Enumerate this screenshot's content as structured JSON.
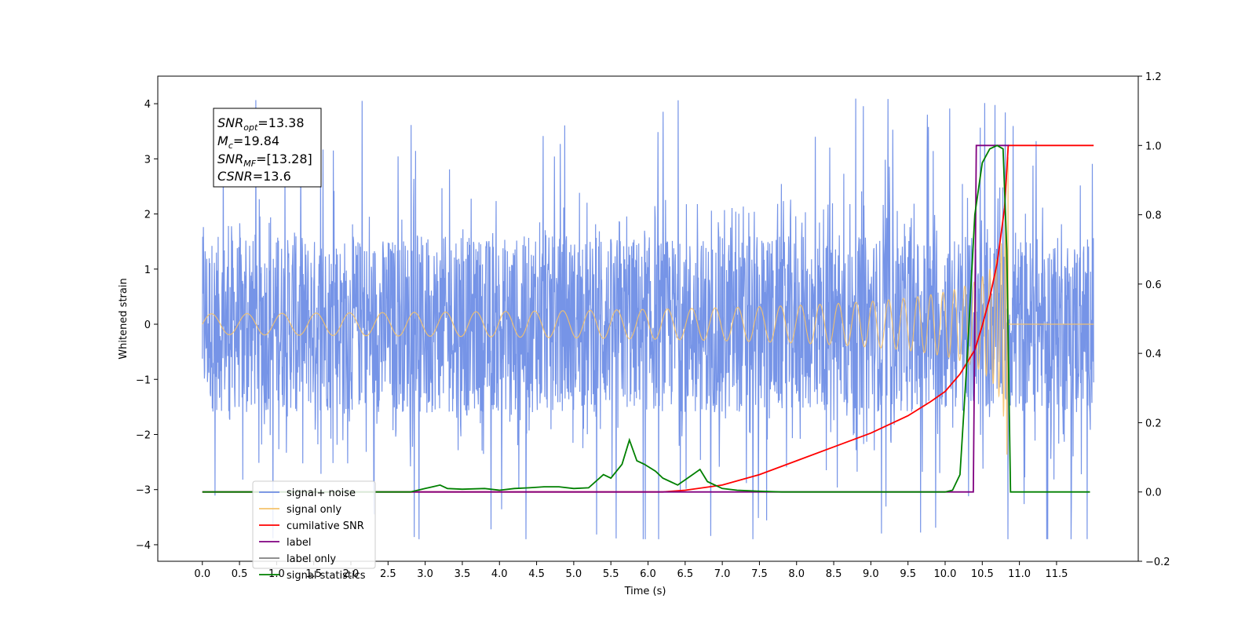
{
  "chart_data": {
    "type": "line",
    "xlabel": "Time (s)",
    "ylabel": "Whitened strain",
    "xlim": [
      -0.6,
      12.6
    ],
    "ylim": [
      -4.3,
      4.5
    ],
    "y2lim": [
      -0.2,
      1.2
    ],
    "x_ticks": [
      0.0,
      0.5,
      1.0,
      1.5,
      2.0,
      2.5,
      3.0,
      3.5,
      4.0,
      4.5,
      5.0,
      5.5,
      6.0,
      6.5,
      7.0,
      7.5,
      8.0,
      8.5,
      9.0,
      9.5,
      10.0,
      10.5,
      11.0,
      11.5
    ],
    "x_tick_labels": [
      "0.0",
      "0.5",
      "1.0",
      "1.5",
      "2.0",
      "2.5",
      "3.0",
      "3.5",
      "4.0",
      "4.5",
      "5.0",
      "5.5",
      "6.0",
      "6.5",
      "7.0",
      "7.5",
      "8.0",
      "8.5",
      "9.0",
      "9.5",
      "10.0",
      "10.5",
      "11.0",
      "11.5"
    ],
    "y_ticks": [
      4,
      3,
      2,
      1,
      0,
      -1,
      -2,
      -3,
      -4
    ],
    "y_tick_labels": [
      "4",
      "3",
      "2",
      "1",
      "0",
      "−1",
      "−2",
      "−3",
      "−4"
    ],
    "y2_ticks": [
      1.2,
      1.0,
      0.8,
      0.6,
      0.4,
      0.2,
      0.0,
      -0.2
    ],
    "y2_tick_labels": [
      "1.2",
      "1.0",
      "0.8",
      "0.6",
      "0.4",
      "0.2",
      "0.0",
      "−0.2"
    ],
    "info_box": {
      "snr_opt": {
        "base": "SNR",
        "sub": "opt",
        "value": "=13.38"
      },
      "mc": {
        "base": "M",
        "sub": "c",
        "value": "=19.84"
      },
      "snr_mf": {
        "base": "SNR",
        "sub": "MF",
        "value": "=[13.28]"
      },
      "csnr": {
        "base": "CSNR",
        "sub": "",
        "value": "=13.6"
      }
    },
    "legend_position": "lower-left",
    "series": [
      {
        "name": "signal+ noise",
        "axis": "left",
        "color": "#6f8ee6",
        "kind": "noise",
        "x_range": [
          0.0,
          12.0
        ],
        "envelope": {
          "min": -3.9,
          "max": 4.1,
          "typical_low": -2.3,
          "typical_high": 2.3,
          "core": 1.6
        }
      },
      {
        "name": "signal only",
        "axis": "left",
        "color": "#f5c26b",
        "kind": "chirp",
        "x_range": [
          0.0,
          12.0
        ],
        "peak_amplitude": 3.2,
        "merger_time": 10.85
      },
      {
        "name": "cumilative SNR",
        "axis": "right",
        "color": "#ff0000",
        "x": [
          0.0,
          6.2,
          6.5,
          7.0,
          7.5,
          8.0,
          8.5,
          9.0,
          9.5,
          9.8,
          10.0,
          10.2,
          10.4,
          10.5,
          10.6,
          10.7,
          10.75,
          10.8,
          10.85,
          12.0
        ],
        "y": [
          0.0,
          0.0,
          0.005,
          0.02,
          0.05,
          0.09,
          0.13,
          0.17,
          0.22,
          0.26,
          0.29,
          0.34,
          0.41,
          0.48,
          0.56,
          0.66,
          0.74,
          0.82,
          1.0,
          1.0
        ]
      },
      {
        "name": "label",
        "axis": "right",
        "color": "#800080",
        "x": [
          0.0,
          10.38,
          10.42,
          10.85,
          10.86
        ],
        "y": [
          0.0,
          0.0,
          1.0,
          1.0,
          1.0
        ]
      },
      {
        "name": "label only",
        "axis": "right",
        "color": "#808080",
        "x": [],
        "y": []
      },
      {
        "name": "signal statistics",
        "axis": "right",
        "color": "#008000",
        "x": [
          0.0,
          2.8,
          3.0,
          3.1,
          3.2,
          3.3,
          3.5,
          3.8,
          4.0,
          4.2,
          4.4,
          4.6,
          4.8,
          5.0,
          5.2,
          5.4,
          5.5,
          5.65,
          5.75,
          5.85,
          5.95,
          6.1,
          6.2,
          6.3,
          6.4,
          6.5,
          6.6,
          6.7,
          6.8,
          7.0,
          7.2,
          7.5,
          7.8,
          8.0,
          9.0,
          10.0,
          10.1,
          10.2,
          10.3,
          10.4,
          10.5,
          10.6,
          10.7,
          10.78,
          10.83,
          10.88,
          11.0,
          11.95
        ],
        "y": [
          0.0,
          0.0,
          0.01,
          0.015,
          0.02,
          0.01,
          0.008,
          0.01,
          0.005,
          0.01,
          0.012,
          0.015,
          0.015,
          0.01,
          0.012,
          0.05,
          0.04,
          0.08,
          0.15,
          0.09,
          0.08,
          0.06,
          0.04,
          0.03,
          0.02,
          0.035,
          0.05,
          0.065,
          0.03,
          0.01,
          0.005,
          0.002,
          0.0,
          0.0,
          0.0,
          0.0,
          0.005,
          0.05,
          0.4,
          0.8,
          0.95,
          0.99,
          1.0,
          0.99,
          0.7,
          0.0,
          0.0,
          0.0
        ]
      }
    ]
  }
}
